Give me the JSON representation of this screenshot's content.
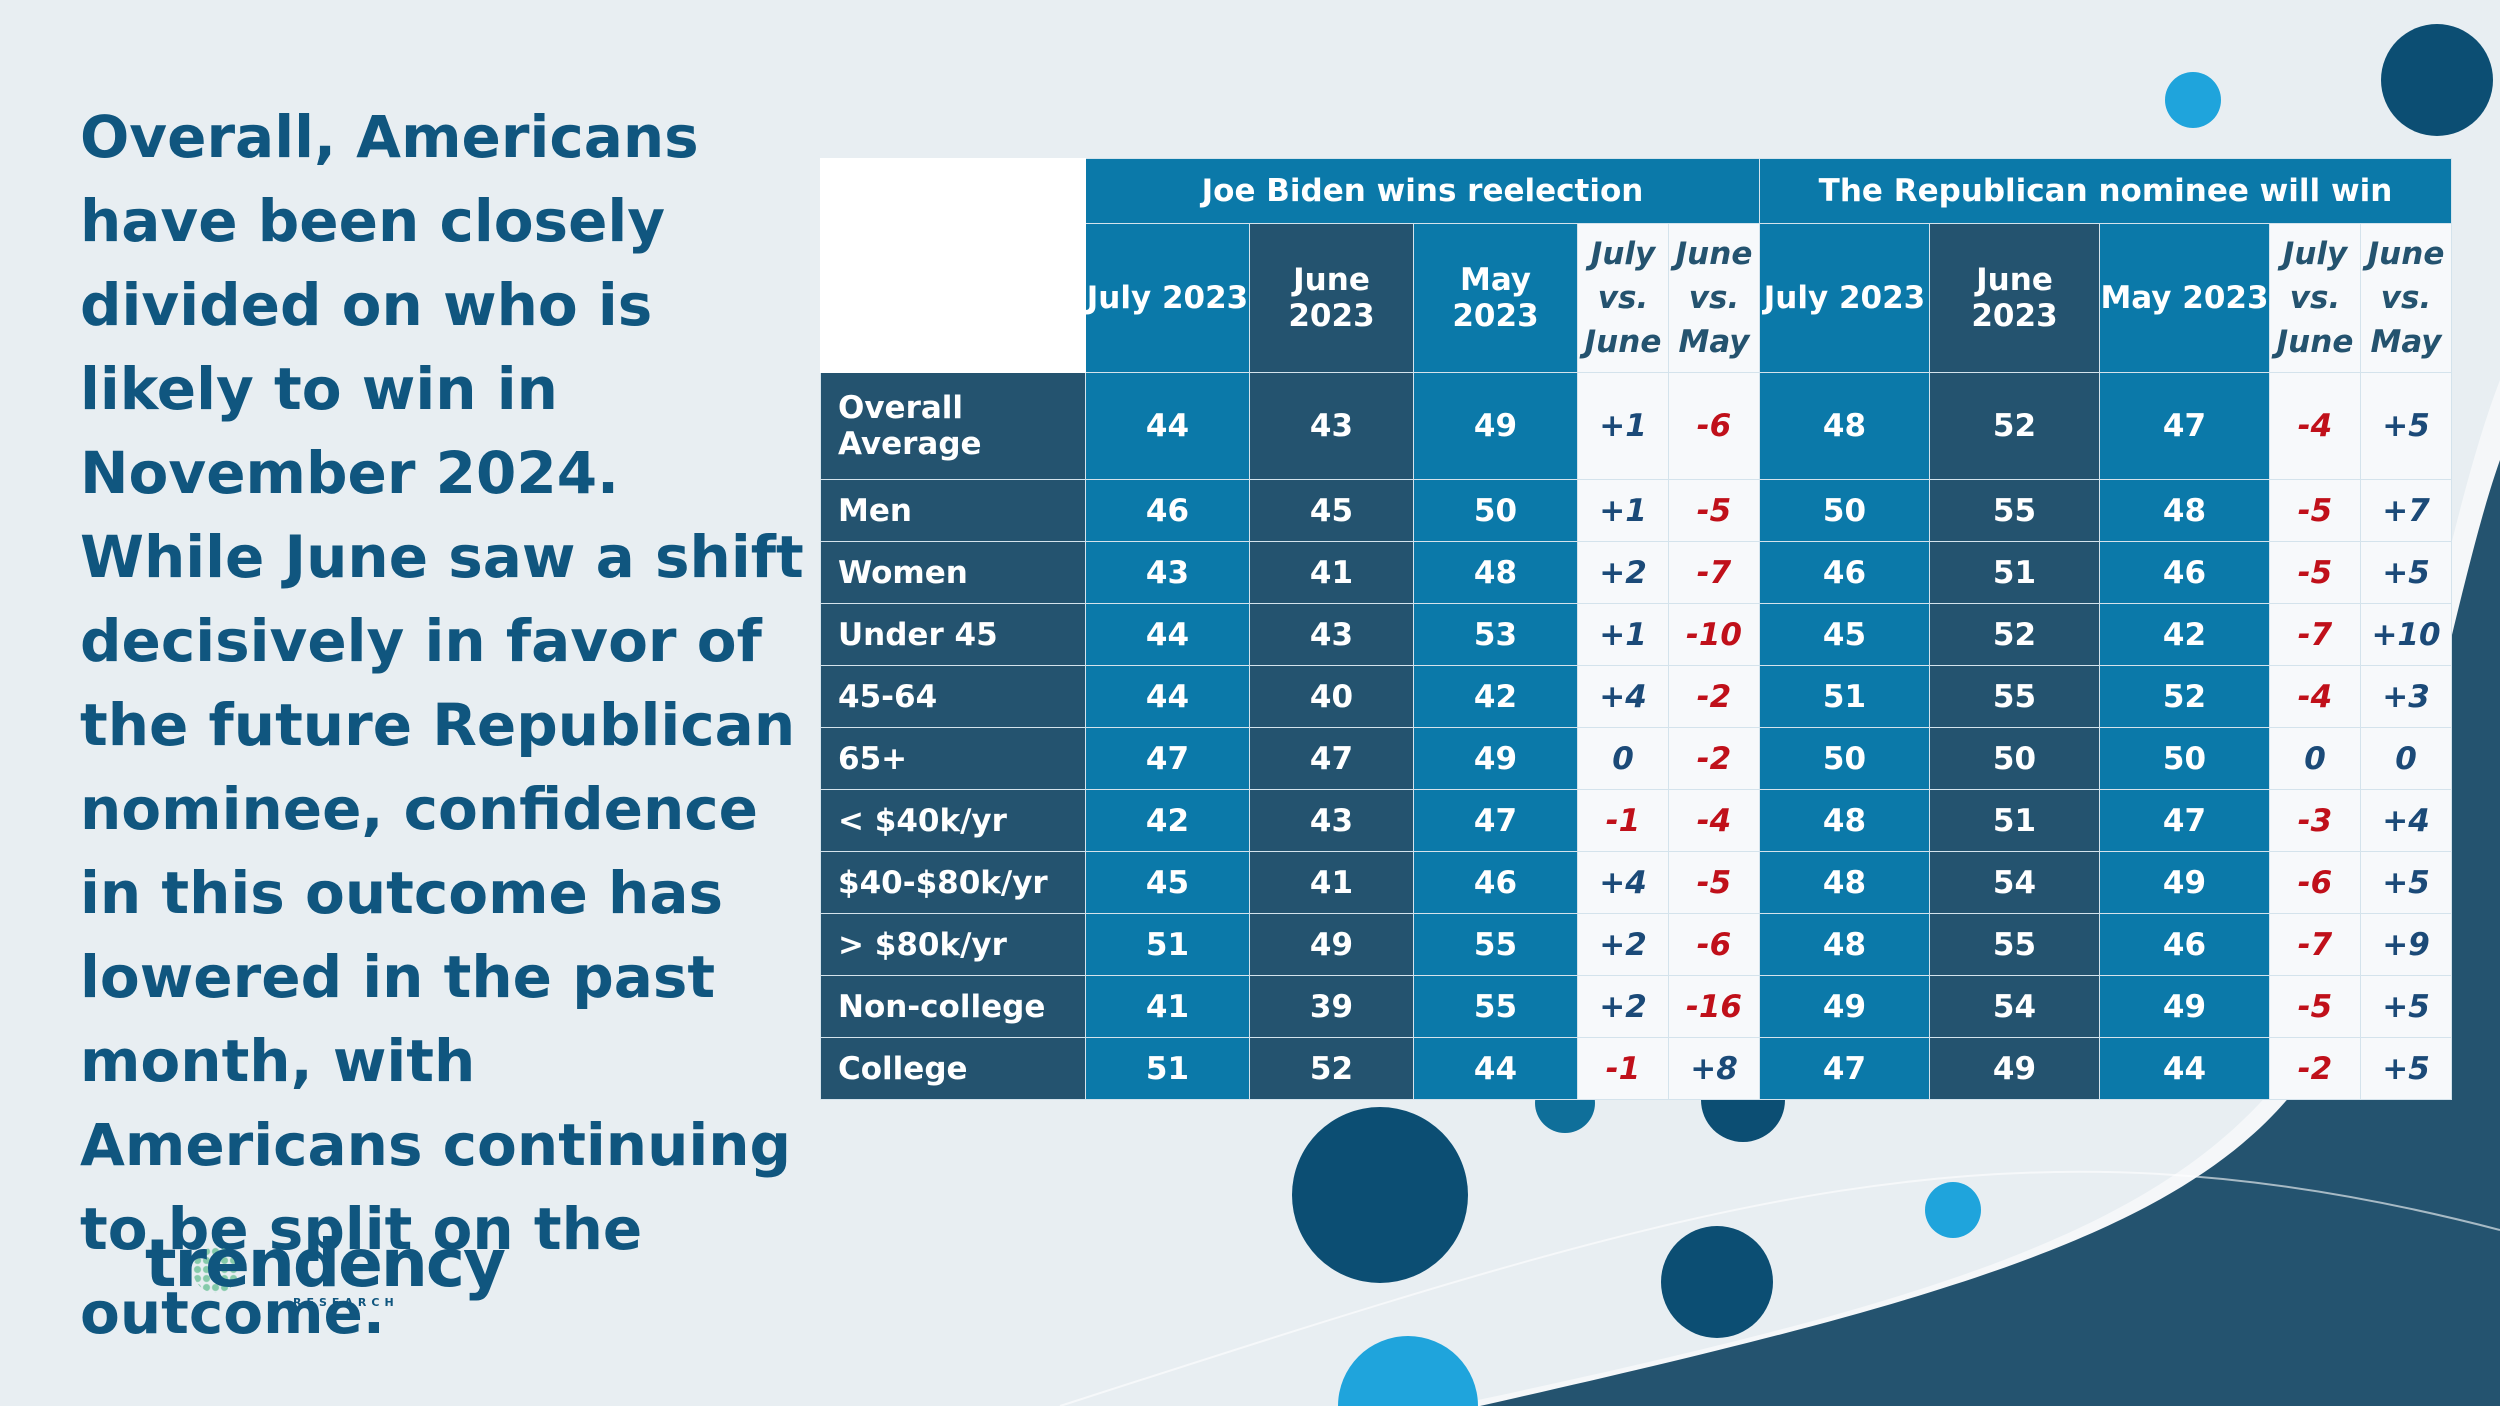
{
  "headline": "Overall, Americans have been closely divided on who is likely to win in November 2024. While June saw a shift decisively in favor of the future Republican nominee, confidence in this outcome has lowered in the past month, with Americans continuing to be split on the outcome.",
  "logo": {
    "word": "trendency",
    "sub": "RESEARCH",
    "tm": "®"
  },
  "colors": {
    "light_blue": "#0b79a9",
    "dark_blue": "#24536f",
    "negative_red": "#c0101a",
    "headline_blue": "#10567f"
  },
  "chart_data": {
    "type": "table",
    "column_groups": [
      "Joe Biden wins reelection",
      "The Republican nominee will win"
    ],
    "columns": [
      "July  2023",
      "June 2023",
      "May 2023",
      "July vs. June",
      "June vs. May",
      "July 2023",
      "June 2023",
      "May 2023",
      "July vs. June",
      "June vs. May"
    ],
    "rows": [
      {
        "label": "Overall Average",
        "values": [
          "44",
          "43",
          "49",
          "+1",
          "-6",
          "48",
          "52",
          "47",
          "-4",
          "+5"
        ]
      },
      {
        "label": "Men",
        "values": [
          "46",
          "45",
          "50",
          "+1",
          "-5",
          "50",
          "55",
          "48",
          "-5",
          "+7"
        ]
      },
      {
        "label": "Women",
        "values": [
          "43",
          "41",
          "48",
          "+2",
          "-7",
          "46",
          "51",
          "46",
          "-5",
          "+5"
        ]
      },
      {
        "label": "Under 45",
        "values": [
          "44",
          "43",
          "53",
          "+1",
          "-10",
          "45",
          "52",
          "42",
          "-7",
          "+10"
        ]
      },
      {
        "label": "45-64",
        "values": [
          "44",
          "40",
          "42",
          "+4",
          "-2",
          "51",
          "55",
          "52",
          "-4",
          "+3"
        ]
      },
      {
        "label": "65+",
        "values": [
          "47",
          "47",
          "49",
          "0",
          "-2",
          "50",
          "50",
          "50",
          "0",
          "0"
        ]
      },
      {
        "label": "< $40k/yr",
        "values": [
          "42",
          "43",
          "47",
          "-1",
          "-4",
          "48",
          "51",
          "47",
          "-3",
          "+4"
        ]
      },
      {
        "label": "$40-$80k/yr",
        "values": [
          "45",
          "41",
          "46",
          "+4",
          "-5",
          "48",
          "54",
          "49",
          "-6",
          "+5"
        ]
      },
      {
        "label": "> $80k/yr",
        "values": [
          "51",
          "49",
          "55",
          "+2",
          "-6",
          "48",
          "55",
          "46",
          "-7",
          "+9"
        ]
      },
      {
        "label": "Non-college",
        "values": [
          "41",
          "39",
          "55",
          "+2",
          "-16",
          "49",
          "54",
          "49",
          "-5",
          "+5"
        ]
      },
      {
        "label": "College",
        "values": [
          "51",
          "52",
          "44",
          "-1",
          "+8",
          "47",
          "49",
          "44",
          "-2",
          "+5"
        ]
      }
    ]
  }
}
